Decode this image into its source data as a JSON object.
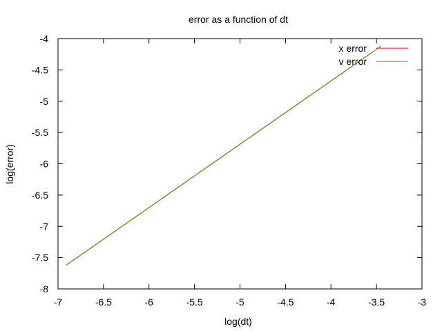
{
  "chart_data": {
    "type": "line",
    "title": "error as a function of dt",
    "xlabel": "log(dt)",
    "ylabel": "log(error)",
    "xlim": [
      -7,
      -3
    ],
    "ylim": [
      -8,
      -4
    ],
    "xticks": [
      -7,
      -6.5,
      -6,
      -5.5,
      -5,
      -4.5,
      -4,
      -3.5,
      -3
    ],
    "yticks": [
      -8,
      -7.5,
      -7,
      -6.5,
      -6,
      -5.5,
      -5,
      -4.5,
      -4
    ],
    "grid": false,
    "legend_position": "top-right",
    "series": [
      {
        "name": "x error",
        "color": "#cc0000",
        "x": [
          -6.91,
          -3.45
        ],
        "y": [
          -7.62,
          -4.12
        ]
      },
      {
        "name": "v error",
        "color": "#339900",
        "x": [
          -6.91,
          -3.45
        ],
        "y": [
          -7.62,
          -4.12
        ]
      }
    ]
  }
}
